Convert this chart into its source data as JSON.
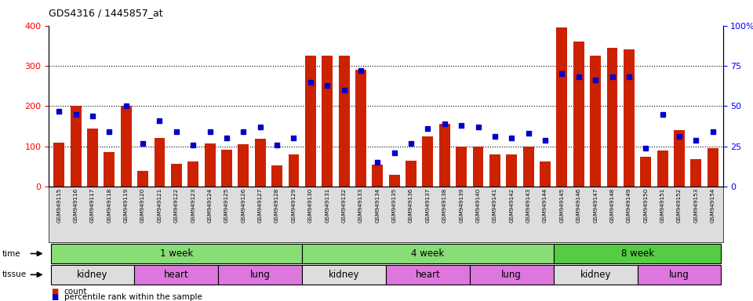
{
  "title": "GDS4316 / 1445857_at",
  "samples": [
    "GSM949115",
    "GSM949116",
    "GSM949117",
    "GSM949118",
    "GSM949119",
    "GSM949120",
    "GSM949121",
    "GSM949122",
    "GSM949123",
    "GSM949124",
    "GSM949125",
    "GSM949126",
    "GSM949127",
    "GSM949128",
    "GSM949129",
    "GSM949130",
    "GSM949131",
    "GSM949132",
    "GSM949133",
    "GSM949134",
    "GSM949135",
    "GSM949136",
    "GSM949137",
    "GSM949138",
    "GSM949139",
    "GSM949140",
    "GSM949141",
    "GSM949142",
    "GSM949143",
    "GSM949144",
    "GSM949145",
    "GSM949146",
    "GSM949147",
    "GSM949148",
    "GSM949149",
    "GSM949150",
    "GSM949151",
    "GSM949152",
    "GSM949153",
    "GSM949154"
  ],
  "counts": [
    110,
    200,
    145,
    85,
    200,
    40,
    120,
    57,
    62,
    108,
    92,
    105,
    118,
    52,
    80,
    325,
    325,
    325,
    290,
    55,
    30,
    65,
    125,
    155,
    100,
    100,
    80,
    80,
    100,
    62,
    395,
    360,
    325,
    345,
    340,
    75,
    90,
    140,
    68,
    95
  ],
  "percentiles": [
    47,
    45,
    44,
    34,
    50,
    27,
    41,
    34,
    26,
    34,
    30,
    34,
    37,
    26,
    30,
    65,
    63,
    60,
    72,
    15,
    21,
    27,
    36,
    39,
    38,
    37,
    31,
    30,
    33,
    29,
    70,
    68,
    66,
    68,
    68,
    24,
    45,
    31,
    29,
    34
  ],
  "bar_color": "#cc2200",
  "dot_color": "#0000cc",
  "left_ylim": [
    0,
    400
  ],
  "right_ylim": [
    0,
    100
  ],
  "left_yticks": [
    0,
    100,
    200,
    300,
    400
  ],
  "right_yticks": [
    0,
    25,
    50,
    75,
    100
  ],
  "right_yticklabels": [
    "0",
    "25",
    "50",
    "75",
    "100%"
  ],
  "grid_values": [
    100,
    200,
    300
  ],
  "time_groups": [
    {
      "label": "1 week",
      "start": 0,
      "end": 15,
      "color": "#88dd77"
    },
    {
      "label": "4 week",
      "start": 15,
      "end": 30,
      "color": "#88dd77"
    },
    {
      "label": "8 week",
      "start": 30,
      "end": 40,
      "color": "#55cc44"
    }
  ],
  "tissue_groups": [
    {
      "label": "kidney",
      "start": 0,
      "end": 5,
      "color": "#dddddd"
    },
    {
      "label": "heart",
      "start": 5,
      "end": 10,
      "color": "#dd77dd"
    },
    {
      "label": "lung",
      "start": 10,
      "end": 15,
      "color": "#dd77dd"
    },
    {
      "label": "kidney",
      "start": 15,
      "end": 20,
      "color": "#dddddd"
    },
    {
      "label": "heart",
      "start": 20,
      "end": 25,
      "color": "#dd77dd"
    },
    {
      "label": "lung",
      "start": 25,
      "end": 30,
      "color": "#dd77dd"
    },
    {
      "label": "kidney",
      "start": 30,
      "end": 35,
      "color": "#dddddd"
    },
    {
      "label": "lung",
      "start": 35,
      "end": 40,
      "color": "#dd77dd"
    }
  ],
  "bg_color": "#ffffff",
  "plot_bg_color": "#ffffff",
  "xtick_bg_color": "#dddddd"
}
